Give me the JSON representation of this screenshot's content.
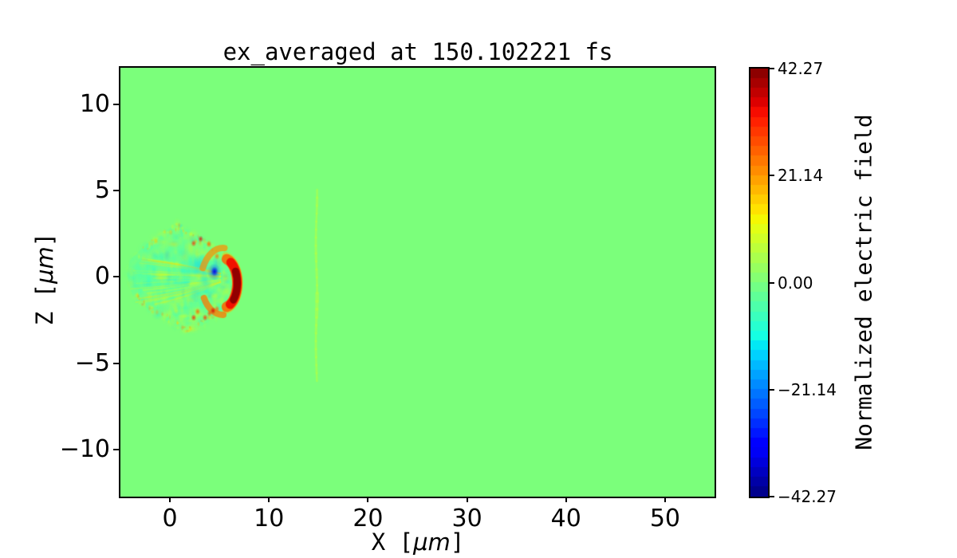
{
  "title": {
    "text": "ex_averaged at 150.102221 fs"
  },
  "axes": {
    "xlabel_prefix": "X [",
    "ylabel_prefix": "Z [",
    "unit": "μm",
    "label_suffix": "]",
    "x_tick_labels": [
      "0",
      "10",
      "20",
      "30",
      "40",
      "50"
    ],
    "y_tick_labels": [
      "10",
      "5",
      "0",
      "−5",
      "−10"
    ]
  },
  "colorbar": {
    "label": "Normalized electric field",
    "tick_labels": [
      "42.27",
      "21.14",
      "0.00",
      "−21.14",
      "−42.27"
    ],
    "tick_values": [
      42.27,
      21.14,
      0,
      -21.14,
      -42.27
    ],
    "n_bands": 44
  },
  "colors": {
    "background_field": "#7bff7b",
    "spine": "#000000",
    "figure_bg": "#ffffff"
  },
  "chart_data": {
    "type": "heatmap",
    "title": "ex_averaged at 150.102221 fs",
    "xlabel": "X [μm]",
    "ylabel": "Z [μm]",
    "x_ticks": [
      0,
      10,
      20,
      30,
      40,
      50
    ],
    "y_ticks": [
      10,
      5,
      0,
      -5,
      -10
    ],
    "xlim": [
      -5,
      55
    ],
    "ylim": [
      -12.7,
      12.1
    ],
    "colormap": "jet",
    "clim": [
      -42.27,
      42.27
    ],
    "colorbar_ticks": [
      42.27,
      21.14,
      0,
      -21.14,
      -42.27
    ],
    "background_value": 0,
    "grid": false,
    "features": {
      "wake": {
        "envelope": [
          [
            -4.35,
            0.1
          ],
          [
            -4.05,
            0.95
          ],
          [
            -2.6,
            1.8
          ],
          [
            -0.9,
            2.5
          ],
          [
            0.8,
            3.1
          ],
          [
            2.3,
            2.5
          ],
          [
            3.9,
            2.1
          ],
          [
            5.2,
            1.4
          ],
          [
            6.4,
            0.7
          ],
          [
            7.0,
            -0.2
          ],
          [
            6.3,
            -1.1
          ],
          [
            5.4,
            -1.9
          ],
          [
            4.2,
            -2.5
          ],
          [
            2.9,
            -2.9
          ],
          [
            1.9,
            -3.3
          ],
          [
            0.2,
            -2.7
          ],
          [
            -1.6,
            -2.1
          ],
          [
            -3.0,
            -1.5
          ],
          [
            -3.75,
            -1.1
          ]
        ],
        "head": {
          "x": 5.35,
          "z": -0.35,
          "rx": 1.45,
          "rz": 1.43,
          "peak_value": 41
        },
        "glow_value": 18,
        "rim_values": [
          26,
          34,
          41
        ],
        "blue_patch": {
          "x": 4.46,
          "z": 0.3,
          "rx": 0.72,
          "rz": 0.5,
          "value": -30
        },
        "cyan_regions": [
          [
            2.0,
            0.5,
            1.3,
            0.8,
            -12
          ],
          [
            3.1,
            0.6,
            1.0,
            0.7,
            -16
          ],
          [
            0.9,
            0.0,
            1.3,
            0.7,
            -9
          ],
          [
            2.6,
            -0.9,
            1.0,
            0.55,
            -12
          ],
          [
            3.6,
            -0.2,
            0.7,
            0.9,
            -13
          ],
          [
            -2.4,
            0.2,
            1.6,
            1.0,
            -7
          ],
          [
            -3.2,
            0.5,
            1.0,
            0.8,
            -6
          ]
        ],
        "top_arc": {
          "rx": 2.25,
          "rz": 2.03,
          "a0": -2.7,
          "a1": -1.5,
          "value": 22
        },
        "bottom_arc": {
          "rx": 2.17,
          "rz": 1.84,
          "a0": 1.55,
          "a1": 2.65,
          "value": 24
        },
        "hot_dots": [
          [
            2.4,
            1.95,
            30
          ],
          [
            3.1,
            2.2,
            34
          ],
          [
            3.95,
            1.9,
            26
          ],
          [
            4.75,
            1.2,
            24
          ],
          [
            4.35,
            -1.95,
            36
          ],
          [
            4.0,
            -2.1,
            28
          ],
          [
            3.55,
            -2.35,
            30
          ],
          [
            2.8,
            -2.0,
            26
          ],
          [
            2.4,
            -2.35,
            32
          ],
          [
            4.75,
            -1.85,
            25
          ]
        ]
      },
      "laser_line": {
        "x": 14.8,
        "z0": -5.65,
        "z1": 5.05,
        "value": 6,
        "width_um": 0.2
      }
    }
  }
}
